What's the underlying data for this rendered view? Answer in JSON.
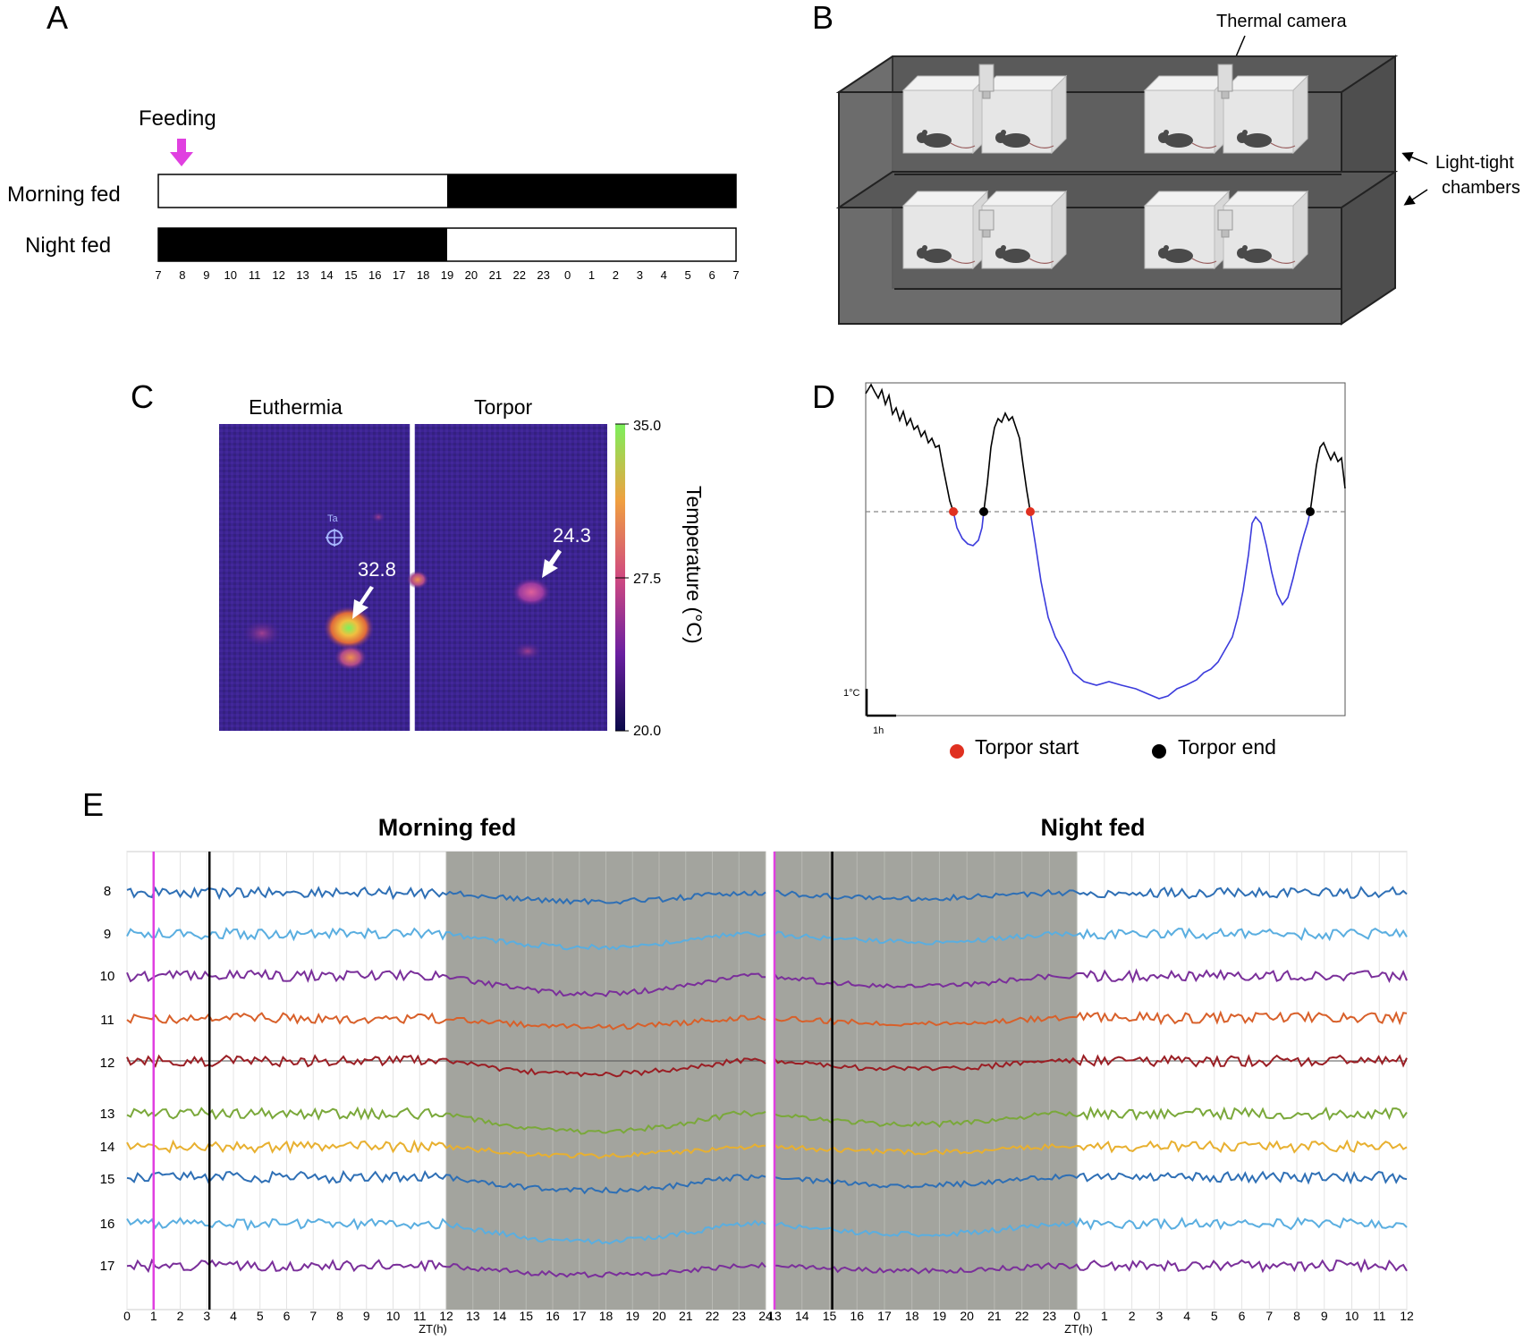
{
  "panels": {
    "a": {
      "letter": "A",
      "feeding_label": "Feeding",
      "rows": [
        {
          "label": "Morning fed",
          "dark_from": 19,
          "dark_to": 31
        },
        {
          "label": "Night fed",
          "dark_from": 7,
          "dark_to": 19
        }
      ],
      "ticks": [
        "7",
        "8",
        "9",
        "10",
        "11",
        "12",
        "13",
        "14",
        "15",
        "16",
        "17",
        "18",
        "19",
        "20",
        "21",
        "22",
        "23",
        "0",
        "1",
        "2",
        "3",
        "4",
        "5",
        "6",
        "7"
      ],
      "colors": {
        "arrow": "#e040e0",
        "dark": "#000000",
        "light": "#ffffff"
      }
    },
    "b": {
      "letter": "B",
      "camera_label": "Thermal camera",
      "chamber_label_line1": "Light-tight",
      "chamber_label_line2": "chambers",
      "colors": {
        "box": "#5a5a5a",
        "cage": "#e6e6e6",
        "mouse": "#4a4a4a"
      }
    },
    "c": {
      "letter": "C",
      "left_title": "Euthermia",
      "right_title": "Torpor",
      "left_value": "32.8",
      "right_value": "24.3",
      "marker_label": "Ta",
      "colorbar_ticks": [
        "35.0",
        "27.5",
        "20.0"
      ],
      "colorbar_label": "Temperature (°C)",
      "colors": {
        "background": "#3a1f8a",
        "hot": "#7cf05c",
        "warm": "#f0a040"
      }
    },
    "d": {
      "letter": "D",
      "scale_y_label": "1°C",
      "scale_x_label": "1h",
      "legend_start": "Torpor start",
      "legend_end": "Torpor end",
      "threshold": 0,
      "colors": {
        "euthermic": "#000000",
        "torpor": "#3b3bdc",
        "start": "#e03020",
        "end": "#000000"
      }
    },
    "e": {
      "letter": "E",
      "left_title": "Morning fed",
      "right_title": "Night fed",
      "xlabel": "ZT(h)",
      "mouse_ids": [
        "8",
        "9",
        "10",
        "11",
        "12",
        "13",
        "14",
        "15",
        "16",
        "17"
      ],
      "left_ticks": [
        "0",
        "1",
        "2",
        "3",
        "4",
        "5",
        "6",
        "7",
        "8",
        "9",
        "10",
        "11",
        "12",
        "13",
        "14",
        "15",
        "16",
        "17",
        "18",
        "19",
        "20",
        "21",
        "22",
        "23",
        "24"
      ],
      "right_ticks": [
        "13",
        "14",
        "15",
        "16",
        "17",
        "18",
        "19",
        "20",
        "21",
        "22",
        "23",
        "0",
        "1",
        "2",
        "3",
        "4",
        "5",
        "6",
        "7",
        "8",
        "9",
        "10",
        "11",
        "12"
      ],
      "left_dark_range": [
        12,
        24
      ],
      "right_dark_range": [
        13,
        24
      ],
      "left_pink_line": 1,
      "left_black_line": 3.1,
      "right_pink_line": 13,
      "right_black_line": 15.1,
      "colors": {
        "dark": "#a3a49e",
        "pink_line": "#e040e0",
        "traces": [
          "#2e6fb5",
          "#5aaee0",
          "#7a2f9a",
          "#d8602a",
          "#9a1e24",
          "#7aa83a",
          "#e8b030",
          "#2e6fb5",
          "#5aaee0",
          "#7a2f9a"
        ]
      }
    }
  }
}
